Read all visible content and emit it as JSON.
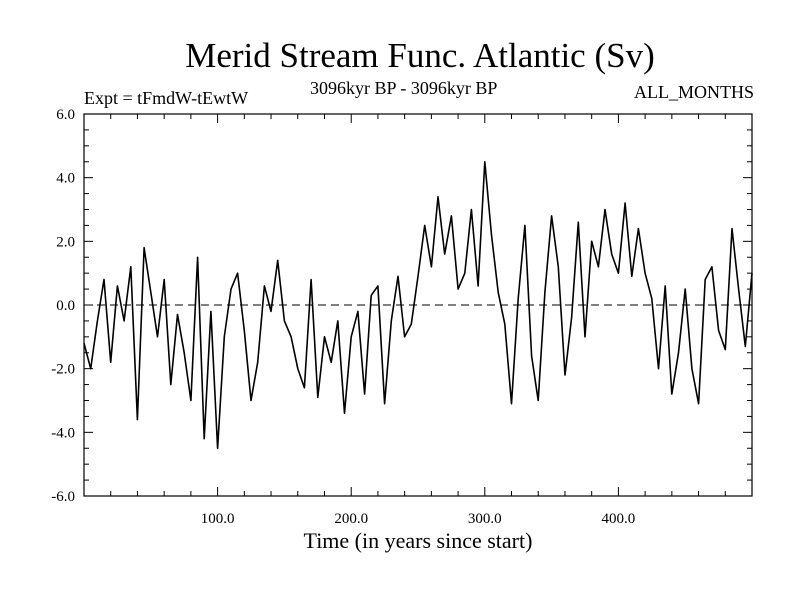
{
  "chart_data": {
    "type": "line",
    "title": "Merid Stream Func. Atlantic (Sv)",
    "subtitle_left": "Expt = tFmdW-tEwtW",
    "subtitle_center": "3096kyr BP - 3096kyr BP",
    "subtitle_right": "ALL_MONTHS",
    "xlabel": "Time (in years since start)",
    "ylabel": "",
    "xlim": [
      0,
      500
    ],
    "ylim": [
      -6.0,
      6.0
    ],
    "x_tick_labels": [
      {
        "value": 100,
        "label": "100.0"
      },
      {
        "value": 200,
        "label": "200.0"
      },
      {
        "value": 300,
        "label": "300.0"
      },
      {
        "value": 400,
        "label": "400.0"
      }
    ],
    "y_tick_labels": [
      {
        "value": 6,
        "label": "6.0"
      },
      {
        "value": 4,
        "label": "4.0"
      },
      {
        "value": 2,
        "label": "2.0"
      },
      {
        "value": 0,
        "label": "0.0"
      },
      {
        "value": -2,
        "label": "-2.0"
      },
      {
        "value": -4,
        "label": "-4.0"
      },
      {
        "value": -6,
        "label": "-6.0"
      }
    ],
    "zero_line": 0,
    "grid": false,
    "series": [
      {
        "name": "Merid Stream Func. Atlantic",
        "x": [
          0,
          5,
          10,
          15,
          20,
          25,
          30,
          35,
          40,
          45,
          50,
          55,
          60,
          65,
          70,
          75,
          80,
          85,
          90,
          95,
          100,
          105,
          110,
          115,
          120,
          125,
          130,
          135,
          140,
          145,
          150,
          155,
          160,
          165,
          170,
          175,
          180,
          185,
          190,
          195,
          200,
          205,
          210,
          215,
          220,
          225,
          230,
          235,
          240,
          245,
          250,
          255,
          260,
          265,
          270,
          275,
          280,
          285,
          290,
          295,
          300,
          305,
          310,
          315,
          320,
          325,
          330,
          335,
          340,
          345,
          350,
          355,
          360,
          365,
          370,
          375,
          380,
          385,
          390,
          395,
          400,
          405,
          410,
          415,
          420,
          425,
          430,
          435,
          440,
          445,
          450,
          455,
          460,
          465,
          470,
          475,
          480,
          485,
          490,
          495,
          500
        ],
        "y": [
          -1.2,
          -2.0,
          -0.5,
          0.8,
          -1.8,
          0.6,
          -0.5,
          1.2,
          -3.6,
          1.8,
          0.4,
          -1.0,
          0.8,
          -2.5,
          -0.3,
          -1.5,
          -3.0,
          1.5,
          -4.2,
          -0.2,
          -4.5,
          -1.0,
          0.5,
          1.0,
          -0.8,
          -3.0,
          -1.8,
          0.6,
          -0.2,
          1.4,
          -0.5,
          -1.0,
          -2.0,
          -2.6,
          0.8,
          -2.9,
          -1.0,
          -1.8,
          -0.5,
          -3.4,
          -1.0,
          -0.2,
          -2.8,
          0.3,
          0.6,
          -3.1,
          -0.5,
          0.9,
          -1.0,
          -0.6,
          0.9,
          2.5,
          1.2,
          3.4,
          1.6,
          2.8,
          0.5,
          1.0,
          3.0,
          0.6,
          4.5,
          2.2,
          0.4,
          -0.6,
          -3.1,
          0.2,
          2.5,
          -1.6,
          -3.0,
          0.4,
          2.8,
          1.2,
          -2.2,
          -0.4,
          2.6,
          -1.0,
          2.0,
          1.2,
          3.0,
          1.6,
          1.0,
          3.2,
          0.9,
          2.4,
          1.0,
          0.2,
          -2.0,
          0.6,
          -2.8,
          -1.5,
          0.5,
          -2.0,
          -3.1,
          0.8,
          1.2,
          -0.8,
          -1.4,
          2.4,
          0.5,
          -1.3,
          1.0
        ]
      }
    ]
  }
}
